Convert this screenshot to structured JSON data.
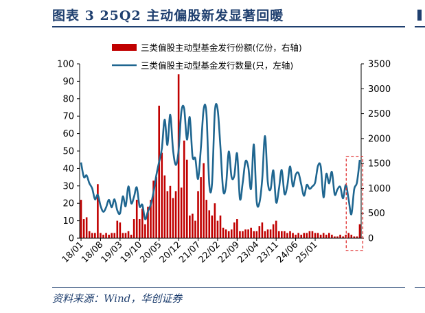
{
  "header": {
    "figure_title": "图表 3   25Q2 主动偏股新发显著回暖"
  },
  "footer": {
    "source": "资料来源：Wind，华创证券"
  },
  "colors": {
    "bar": "#c00000",
    "line": "#1f6690",
    "highlight_box": "#e03030",
    "title": "#1f3f6f"
  },
  "chart_data": {
    "type": "bar",
    "title": "",
    "legend": {
      "placement": "top-center"
    },
    "grid": false,
    "x_ticks": [
      "18/01",
      "18/08",
      "19/03",
      "19/10",
      "20/05",
      "20/12",
      "21/07",
      "22/02",
      "22/09",
      "23/04",
      "23/11",
      "24/06",
      "25/01"
    ],
    "y_left": {
      "ylim": [
        0,
        100
      ],
      "ticks": [
        0,
        10,
        20,
        30,
        40,
        50,
        60,
        70,
        80,
        90,
        100
      ]
    },
    "y_right": {
      "ylim": [
        0,
        3500
      ],
      "ticks": [
        0,
        500,
        1000,
        1500,
        2000,
        2500,
        3000,
        3500
      ]
    },
    "series": [
      {
        "name": "三类偏股主动型基金发行份额(亿份，右轴)",
        "type": "bar",
        "axis": "left",
        "values": [
          22,
          11,
          12,
          4,
          3,
          3,
          31,
          3,
          2,
          3,
          2,
          3,
          3,
          10,
          9,
          3,
          3,
          4,
          2,
          11,
          22,
          11,
          17,
          8,
          18,
          22,
          33,
          35,
          76,
          49,
          36,
          27,
          30,
          23,
          27,
          94,
          29,
          56,
          45,
          13,
          14,
          10,
          27,
          35,
          43,
          22,
          16,
          13,
          20,
          10,
          13,
          6,
          5,
          4,
          5,
          9,
          11,
          4,
          4,
          5,
          5,
          6,
          4,
          4,
          7,
          9,
          4,
          5,
          5,
          8,
          10,
          4,
          4,
          4,
          3,
          4,
          3,
          2,
          3,
          2,
          3,
          3,
          4,
          4,
          3,
          3,
          2,
          3,
          2,
          3,
          2,
          1,
          1,
          2,
          1,
          2,
          3,
          2,
          1,
          1,
          8
        ]
      },
      {
        "name": "三类偏股主动型基金发行数量(只，左轴)",
        "type": "line",
        "axis": "right",
        "values": [
          1520,
          1230,
          1260,
          1100,
          1000,
          780,
          870,
          650,
          530,
          620,
          770,
          620,
          780,
          560,
          500,
          840,
          640,
          1040,
          700,
          830,
          1020,
          640,
          670,
          380,
          540,
          670,
          920,
          1260,
          1530,
          1800,
          2380,
          1870,
          2480,
          1780,
          1470,
          1760,
          2540,
          2600,
          1980,
          2430,
          1640,
          1600,
          1190,
          1810,
          2590,
          2500,
          1090,
          1100,
          2530,
          2590,
          1840,
          960,
          1050,
          1740,
          1230,
          1260,
          1700,
          790,
          1110,
          1540,
          1430,
          990,
          1880,
          750,
          710,
          1180,
          2050,
          1130,
          980,
          1360,
          720,
          990,
          1370,
          890,
          1050,
          1440,
          1040,
          1270,
          1310,
          1080,
          850,
          1070,
          990,
          1040,
          1120,
          1450,
          1440,
          820,
          1290,
          1100,
          1330,
          880,
          980,
          1030,
          800,
          1070,
          780,
          480,
          980,
          1120,
          1570
        ]
      }
    ],
    "highlight": {
      "start_index": 96,
      "end_index": 100,
      "style": "dashed-box"
    }
  }
}
